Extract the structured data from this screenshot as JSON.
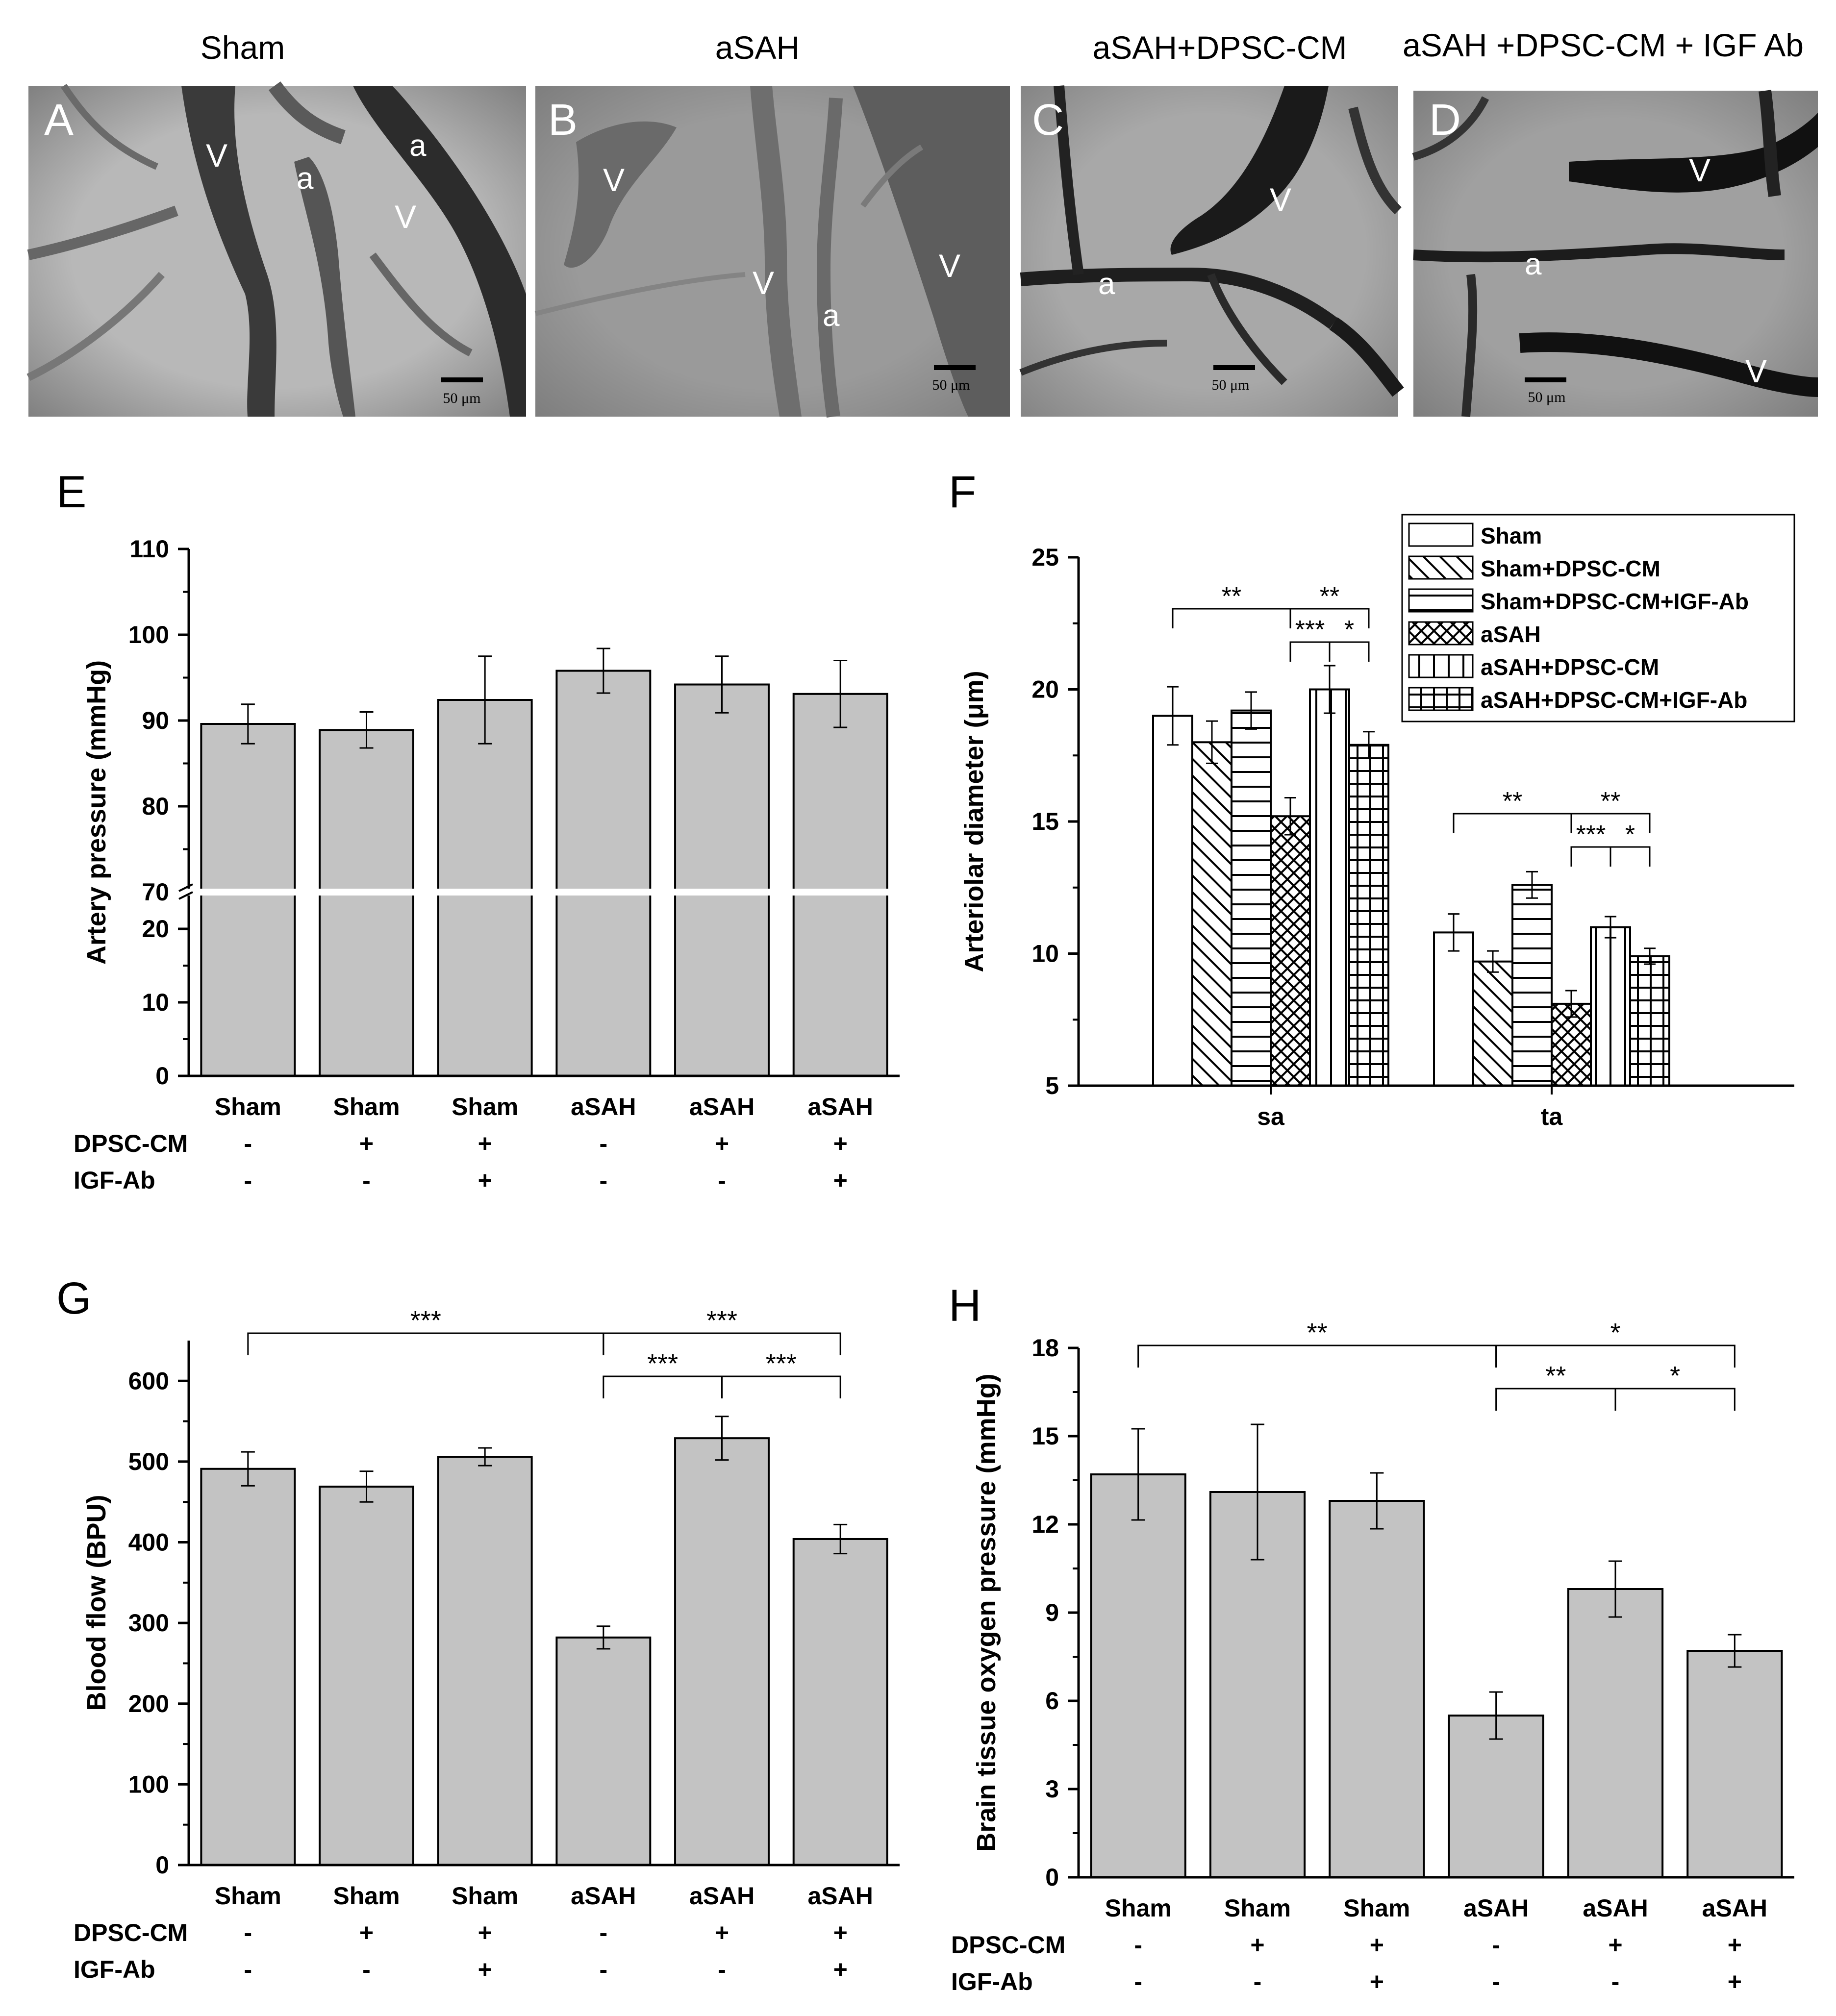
{
  "figure": {
    "micrographs": [
      {
        "panel": "A",
        "title": "Sham",
        "labels": [
          "V",
          "a",
          "a",
          "V"
        ],
        "scale_bar": "50 μm"
      },
      {
        "panel": "B",
        "title": "aSAH",
        "labels": [
          "V",
          "V",
          "a",
          "V"
        ],
        "scale_bar": "50 μm"
      },
      {
        "panel": "C",
        "title": "aSAH+DPSC-CM",
        "labels": [
          "V",
          "a"
        ],
        "scale_bar": "50 μm"
      },
      {
        "panel": "D",
        "title": "aSAH +DPSC-CM + IGF Ab",
        "labels": [
          "V",
          "a",
          "V"
        ],
        "scale_bar": "50 μm"
      }
    ]
  },
  "colors": {
    "bar_fill": "#c3c3c3",
    "axis": "#000000"
  },
  "chart_data": [
    {
      "panel": "E",
      "type": "bar",
      "ylabel": "Artery pressure (mmHg)",
      "categories": [
        "Sham",
        "Sham",
        "Sham",
        "aSAH",
        "aSAH",
        "aSAH"
      ],
      "row_labels": [
        "DPSC-CM",
        "IGF-Ab"
      ],
      "rows": [
        [
          "-",
          "+",
          "+",
          "-",
          "+",
          "+"
        ],
        [
          "-",
          "-",
          "+",
          "-",
          "-",
          "+"
        ]
      ],
      "values": [
        89.6,
        88.9,
        92.4,
        95.8,
        94.2,
        93.1
      ],
      "errors": [
        2.3,
        2.1,
        5.1,
        2.6,
        3.3,
        3.9
      ],
      "y_axis_break": {
        "lower": [
          0,
          25
        ],
        "upper": [
          70,
          110
        ]
      },
      "lower_ticks": [
        0,
        10,
        20
      ],
      "upper_ticks": [
        70,
        80,
        90,
        100,
        110
      ],
      "grid": false
    },
    {
      "panel": "F",
      "type": "bar",
      "ylabel": "Arteriolar diameter (μm)",
      "categories": [
        "sa",
        "ta"
      ],
      "series": [
        {
          "name": "Sham",
          "values": [
            19.0,
            10.8
          ],
          "errors": [
            1.1,
            0.7
          ],
          "pattern": "none"
        },
        {
          "name": "Sham+DPSC-CM",
          "values": [
            18.0,
            9.7
          ],
          "errors": [
            0.8,
            0.4
          ],
          "pattern": "diag"
        },
        {
          "name": "Sham+DPSC-CM+IGF-Ab",
          "values": [
            19.2,
            12.6
          ],
          "errors": [
            0.7,
            0.5
          ],
          "pattern": "hlines"
        },
        {
          "name": "aSAH",
          "values": [
            15.2,
            8.1
          ],
          "errors": [
            0.7,
            0.5
          ],
          "pattern": "cross"
        },
        {
          "name": "aSAH+DPSC-CM",
          "values": [
            20.0,
            11.0
          ],
          "errors": [
            0.9,
            0.4
          ],
          "pattern": "vlines"
        },
        {
          "name": "aSAH+DPSC-CM+IGF-Ab",
          "values": [
            17.9,
            9.9
          ],
          "errors": [
            0.5,
            0.3
          ],
          "pattern": "grid"
        }
      ],
      "ylim": [
        5,
        25
      ],
      "yticks": [
        5,
        10,
        15,
        20,
        25
      ],
      "legend": "top-right",
      "significance": [
        {
          "cat": 0,
          "from": 0,
          "to": 3,
          "label": "**",
          "level": 0
        },
        {
          "cat": 0,
          "from": 3,
          "to": 5,
          "label": "**",
          "level": 0
        },
        {
          "cat": 0,
          "from": 3,
          "to": 4,
          "label": "***",
          "level": 1
        },
        {
          "cat": 0,
          "from": 4,
          "to": 5,
          "label": "*",
          "level": 1
        },
        {
          "cat": 1,
          "from": 0,
          "to": 3,
          "label": "**",
          "level": 0
        },
        {
          "cat": 1,
          "from": 3,
          "to": 5,
          "label": "**",
          "level": 0
        },
        {
          "cat": 1,
          "from": 3,
          "to": 4,
          "label": "***",
          "level": 1
        },
        {
          "cat": 1,
          "from": 4,
          "to": 5,
          "label": "*",
          "level": 1
        }
      ]
    },
    {
      "panel": "G",
      "type": "bar",
      "ylabel": "Blood flow (BPU)",
      "categories": [
        "Sham",
        "Sham",
        "Sham",
        "aSAH",
        "aSAH",
        "aSAH"
      ],
      "row_labels": [
        "DPSC-CM",
        "IGF-Ab"
      ],
      "rows": [
        [
          "-",
          "+",
          "+",
          "-",
          "+",
          "+"
        ],
        [
          "-",
          "-",
          "+",
          "-",
          "-",
          "+"
        ]
      ],
      "values": [
        491,
        469,
        506,
        282,
        529,
        404
      ],
      "errors": [
        21,
        19,
        11,
        14,
        27,
        18
      ],
      "ylim": [
        0,
        650
      ],
      "yticks": [
        0,
        100,
        200,
        300,
        400,
        500,
        600
      ],
      "significance": [
        {
          "from": 0,
          "to": 3,
          "label": "***",
          "level": 0
        },
        {
          "from": 3,
          "to": 5,
          "label": "***",
          "level": 0
        },
        {
          "from": 3,
          "to": 4,
          "label": "***",
          "level": 1
        },
        {
          "from": 4,
          "to": 5,
          "label": "***",
          "level": 1
        }
      ]
    },
    {
      "panel": "H",
      "type": "bar",
      "ylabel": "Brain tissue oxygen pressure (mmHg)",
      "categories": [
        "Sham",
        "Sham",
        "Sham",
        "aSAH",
        "aSAH",
        "aSAH"
      ],
      "row_labels": [
        "DPSC-CM",
        "IGF-Ab"
      ],
      "rows": [
        [
          "-",
          "+",
          "+",
          "-",
          "+",
          "+"
        ],
        [
          "-",
          "-",
          "+",
          "-",
          "-",
          "+"
        ]
      ],
      "values": [
        13.7,
        13.1,
        12.8,
        5.5,
        9.8,
        7.7
      ],
      "errors": [
        1.55,
        2.3,
        0.95,
        0.8,
        0.95,
        0.55
      ],
      "ylim": [
        0,
        18
      ],
      "yticks": [
        0,
        3,
        6,
        9,
        12,
        15,
        18
      ],
      "significance": [
        {
          "from": 0,
          "to": 3,
          "label": "**",
          "level": 0
        },
        {
          "from": 3,
          "to": 5,
          "label": "*",
          "level": 0
        },
        {
          "from": 3,
          "to": 4,
          "label": "**",
          "level": 1
        },
        {
          "from": 4,
          "to": 5,
          "label": "*",
          "level": 1
        }
      ]
    }
  ]
}
